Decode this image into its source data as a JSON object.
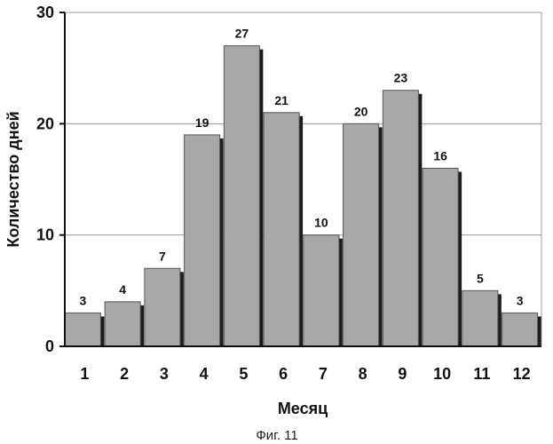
{
  "chart_data": {
    "type": "bar",
    "categories": [
      "1",
      "2",
      "3",
      "4",
      "5",
      "6",
      "7",
      "8",
      "9",
      "10",
      "11",
      "12"
    ],
    "values": [
      3,
      4,
      7,
      19,
      27,
      21,
      10,
      20,
      23,
      16,
      5,
      3
    ],
    "xlabel": "Месяц",
    "ylabel": "Количество дней",
    "ylim": [
      0,
      30
    ],
    "yticks": [
      0,
      10,
      20,
      30
    ],
    "grid": true,
    "legend": "none"
  },
  "caption": "Фиг. 11",
  "colors": {
    "bar_fill": "#a8a8a8",
    "bar_shadow": "#1c1c1c",
    "bar_edge": "#555555",
    "grid": "#9a9a9a",
    "axis": "#111111"
  }
}
